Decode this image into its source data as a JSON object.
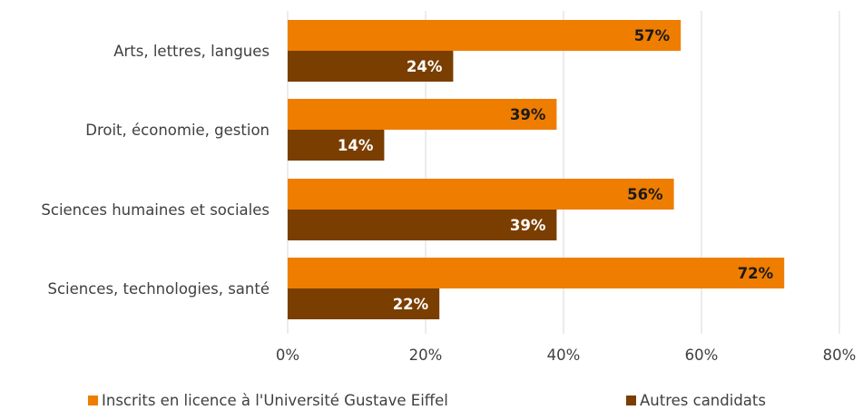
{
  "chart_data": {
    "type": "bar",
    "orientation": "horizontal",
    "categories": [
      "Arts, lettres, langues",
      "Droit, économie, gestion",
      "Sciences humaines et sociales",
      "Sciences, technologies, santé"
    ],
    "series": [
      {
        "name": "Inscrits en licence à l'Université Gustave Eiffel",
        "values": [
          57,
          39,
          56,
          72
        ],
        "labels": [
          "57%",
          "39%",
          "56%",
          "72%"
        ],
        "color": "#EF7D00",
        "label_color": "#1a1a1a"
      },
      {
        "name": "Autres candidats",
        "values": [
          24,
          14,
          39,
          22
        ],
        "labels": [
          "24%",
          "14%",
          "39%",
          "22%"
        ],
        "color": "#7A3E00",
        "label_color": "#ffffff"
      }
    ],
    "x_ticks": [
      "0%",
      "20%",
      "40%",
      "60%",
      "80%"
    ],
    "xlim": [
      0,
      80
    ],
    "grid": true,
    "legend_position": "bottom",
    "title": "",
    "xlabel": "",
    "ylabel": ""
  }
}
